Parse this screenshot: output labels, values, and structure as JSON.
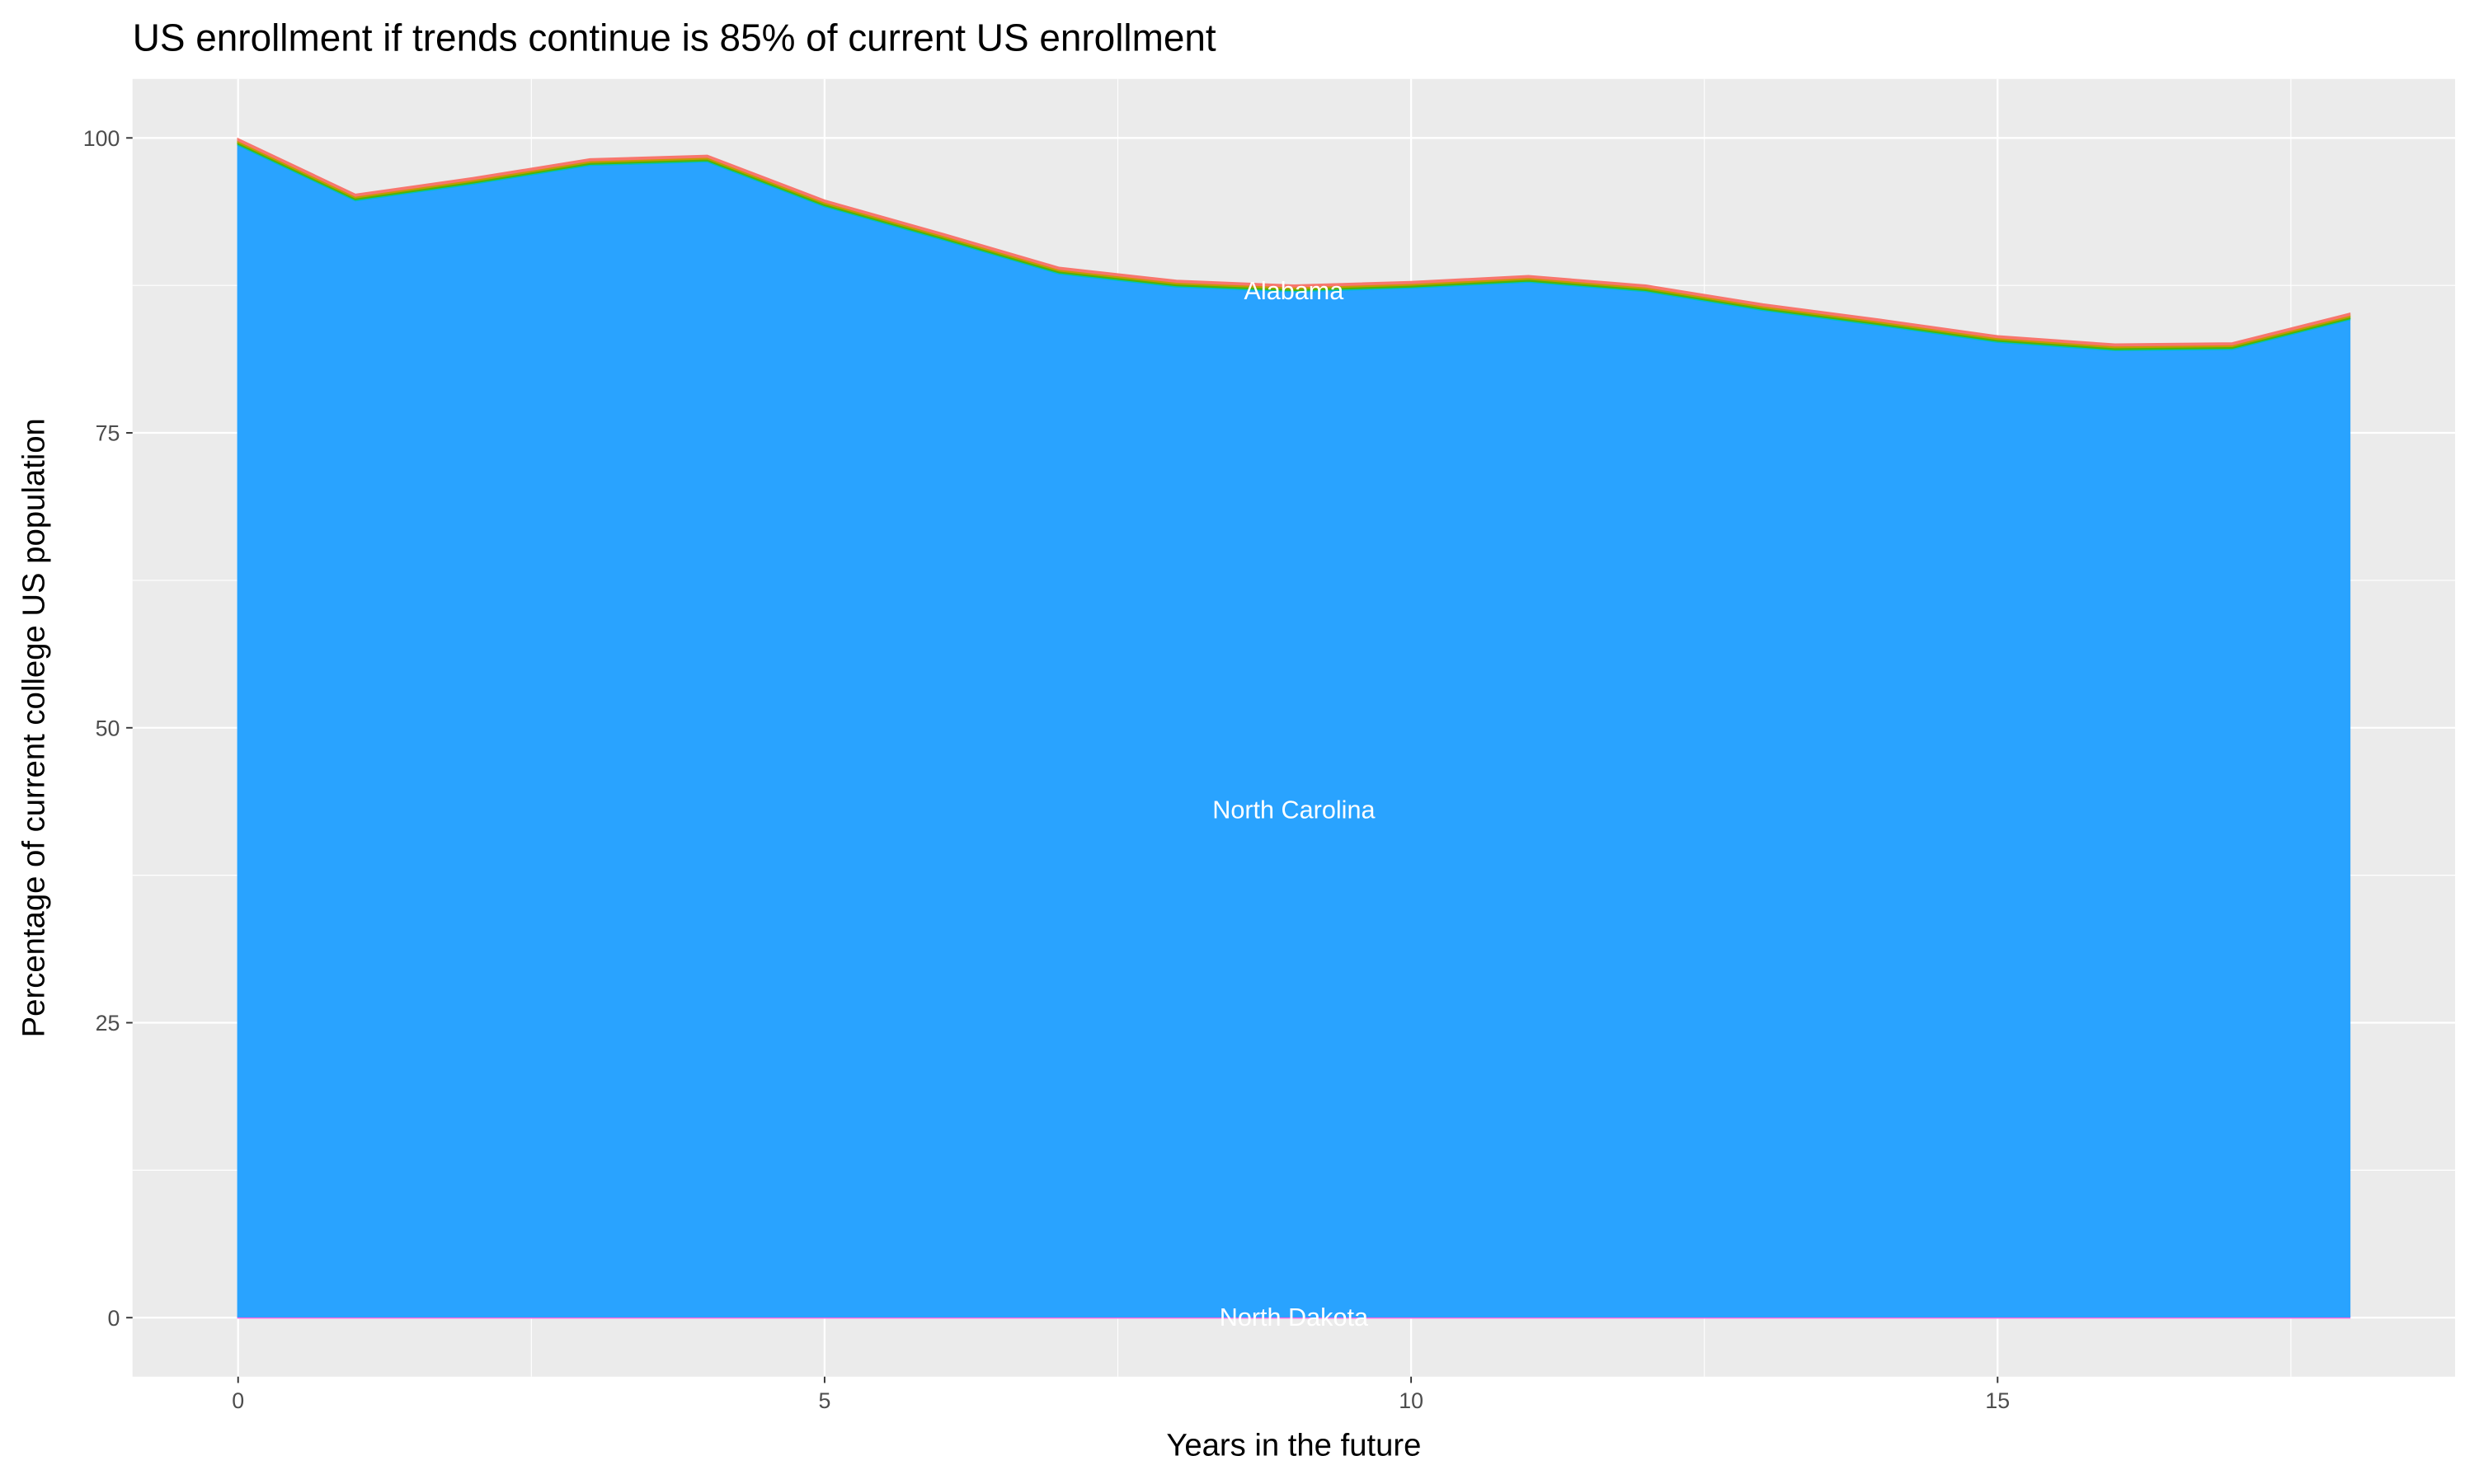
{
  "chart_data": {
    "type": "area",
    "stacked": true,
    "title": "US enrollment if trends continue is 85% of current US enrollment",
    "xlabel": "Years in the future",
    "ylabel": "Percentage of current college US population",
    "xlim": [
      -0.9,
      18.9
    ],
    "ylim": [
      -5,
      105
    ],
    "x_ticks": [
      0,
      5,
      10,
      15
    ],
    "y_ticks": [
      0,
      25,
      50,
      75,
      100
    ],
    "grid": true,
    "x": [
      0,
      1,
      2,
      3,
      4,
      5,
      6,
      7,
      8,
      9,
      10,
      11,
      12,
      13,
      14,
      15,
      16,
      17,
      18
    ],
    "series": [
      {
        "name": "North Dakota",
        "color": "#F564E3",
        "label_x": 9,
        "label_y": 0,
        "values": [
          0.1,
          0.1,
          0.1,
          0.1,
          0.1,
          0.1,
          0.1,
          0.1,
          0.1,
          0.1,
          0.1,
          0.1,
          0.1,
          0.1,
          0.1,
          0.1,
          0.1,
          0.1,
          0.1
        ]
      },
      {
        "name": "North Carolina",
        "color": "#29A3FF",
        "label_x": 9,
        "label_y": 43,
        "values": [
          99.3,
          94.6,
          96.0,
          97.6,
          97.9,
          94.1,
          91.3,
          88.4,
          87.3,
          86.9,
          87.2,
          87.7,
          86.9,
          85.3,
          84.0,
          82.6,
          81.9,
          82.0,
          84.5
        ]
      },
      {
        "color": "#00BFC4",
        "values": [
          0.1,
          0.1,
          0.1,
          0.1,
          0.1,
          0.1,
          0.1,
          0.1,
          0.1,
          0.1,
          0.1,
          0.1,
          0.1,
          0.1,
          0.1,
          0.1,
          0.1,
          0.1,
          0.1
        ]
      },
      {
        "color": "#53B400",
        "values": [
          0.15,
          0.15,
          0.15,
          0.15,
          0.15,
          0.15,
          0.15,
          0.15,
          0.15,
          0.15,
          0.15,
          0.15,
          0.15,
          0.15,
          0.15,
          0.15,
          0.15,
          0.15,
          0.15
        ]
      },
      {
        "name": "Alabama",
        "color": "#C49A00",
        "label_x": 9,
        "label_y": 87,
        "values": [
          0.15,
          0.15,
          0.15,
          0.15,
          0.15,
          0.15,
          0.15,
          0.15,
          0.15,
          0.15,
          0.15,
          0.15,
          0.15,
          0.15,
          0.15,
          0.15,
          0.15,
          0.15,
          0.15
        ]
      },
      {
        "color": "#F8766D",
        "values": [
          0.1,
          0.1,
          0.1,
          0.1,
          0.1,
          0.1,
          0.1,
          0.1,
          0.1,
          0.1,
          0.1,
          0.1,
          0.1,
          0.1,
          0.1,
          0.1,
          0.1,
          0.1,
          0.1
        ]
      }
    ],
    "colors": {
      "panel": "#EBEBEB",
      "grid": "#FFFFFF",
      "axis_text": "#4D4D4D"
    }
  }
}
